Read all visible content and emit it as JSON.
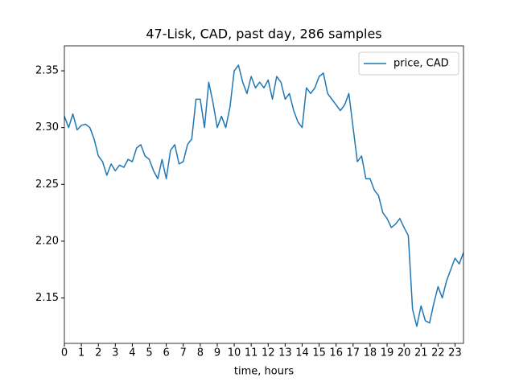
{
  "chart_data": {
    "type": "line",
    "title": "47-Lisk, CAD, past day, 286 samples",
    "xlabel": "time, hours",
    "x": [
      0,
      0.25,
      0.5,
      0.75,
      1,
      1.25,
      1.5,
      1.75,
      2,
      2.25,
      2.5,
      2.75,
      3,
      3.25,
      3.5,
      3.75,
      4,
      4.25,
      4.5,
      4.75,
      5,
      5.25,
      5.5,
      5.75,
      6,
      6.25,
      6.5,
      6.75,
      7,
      7.25,
      7.5,
      7.75,
      8,
      8.25,
      8.5,
      8.75,
      9,
      9.25,
      9.5,
      9.75,
      10,
      10.25,
      10.5,
      10.75,
      11,
      11.25,
      11.5,
      11.75,
      12,
      12.25,
      12.5,
      12.75,
      13,
      13.25,
      13.5,
      13.75,
      14,
      14.25,
      14.5,
      14.75,
      15,
      15.25,
      15.5,
      15.75,
      16,
      16.25,
      16.5,
      16.75,
      17,
      17.25,
      17.5,
      17.75,
      18,
      18.25,
      18.5,
      18.75,
      19,
      19.25,
      19.5,
      19.75,
      20,
      20.25,
      20.5,
      20.75,
      21,
      21.25,
      21.5,
      21.75,
      22,
      22.25,
      22.5,
      22.75,
      23,
      23.25,
      23.5
    ],
    "series": [
      {
        "name": "price, CAD",
        "color": "#1f77b4",
        "values": [
          2.31,
          2.3,
          2.312,
          2.298,
          2.302,
          2.303,
          2.3,
          2.29,
          2.275,
          2.27,
          2.258,
          2.268,
          2.262,
          2.267,
          2.265,
          2.272,
          2.27,
          2.282,
          2.285,
          2.275,
          2.272,
          2.262,
          2.255,
          2.272,
          2.255,
          2.28,
          2.285,
          2.268,
          2.27,
          2.285,
          2.29,
          2.325,
          2.325,
          2.3,
          2.34,
          2.322,
          2.3,
          2.31,
          2.3,
          2.318,
          2.35,
          2.355,
          2.34,
          2.33,
          2.345,
          2.335,
          2.34,
          2.335,
          2.342,
          2.325,
          2.345,
          2.34,
          2.325,
          2.33,
          2.315,
          2.305,
          2.3,
          2.335,
          2.33,
          2.335,
          2.345,
          2.348,
          2.33,
          2.325,
          2.32,
          2.315,
          2.32,
          2.33,
          2.3,
          2.27,
          2.275,
          2.255,
          2.255,
          2.245,
          2.24,
          2.225,
          2.22,
          2.212,
          2.215,
          2.22,
          2.212,
          2.205,
          2.14,
          2.125,
          2.143,
          2.13,
          2.128,
          2.145,
          2.16,
          2.15,
          2.165,
          2.175,
          2.185,
          2.18,
          2.19
        ]
      }
    ],
    "xlim": [
      0,
      23.5
    ],
    "ylim": [
      2.11,
      2.372
    ],
    "xticks": [
      0,
      1,
      2,
      3,
      4,
      5,
      6,
      7,
      8,
      9,
      10,
      11,
      12,
      13,
      14,
      15,
      16,
      17,
      18,
      19,
      20,
      21,
      22,
      23
    ],
    "yticks": [
      2.15,
      {
        "value": 2.2,
        "label": "2.20"
      },
      2.25,
      {
        "value": 2.3,
        "label": "2.30"
      },
      2.35
    ],
    "grid": false,
    "legend": "upper right"
  }
}
